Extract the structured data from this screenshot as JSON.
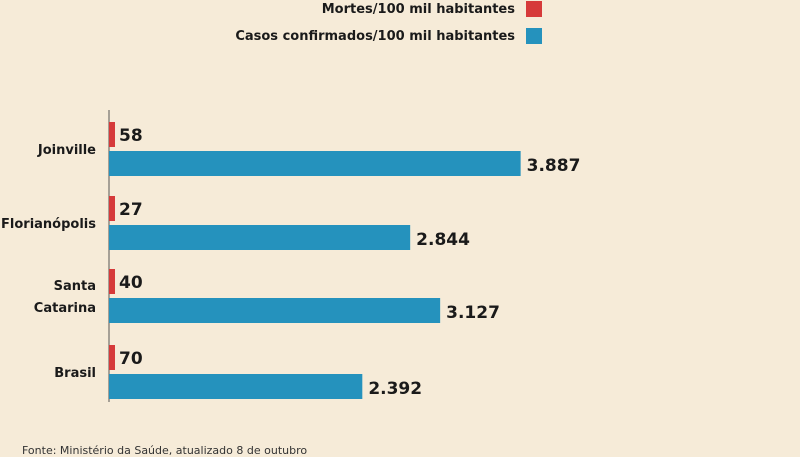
{
  "legend": {
    "deaths_label": "Mortes/100 mil habitantes",
    "cases_label": "Casos confirmados/100 mil habitantes"
  },
  "colors": {
    "background": "#f6ebd8",
    "deaths": "#d63a3a",
    "cases": "#2592bd"
  },
  "source": "Fonte: Ministério da Saúde, atualizado 8 de outubro",
  "chart_data": {
    "type": "bar",
    "orientation": "horizontal",
    "categories": [
      "Joinville",
      "Florianópolis",
      "Santa Catarina",
      "Brasil"
    ],
    "series": [
      {
        "name": "Mortes/100 mil habitantes",
        "values": [
          58,
          27,
          40,
          70
        ],
        "labels": [
          "58",
          "27",
          "40",
          "70"
        ]
      },
      {
        "name": "Casos confirmados/100 mil habitantes",
        "values": [
          3887,
          2844,
          3127,
          2392
        ],
        "labels": [
          "3.887",
          "2.844",
          "3.127",
          "2.392"
        ]
      }
    ],
    "legend": "top-right",
    "grid": false
  }
}
